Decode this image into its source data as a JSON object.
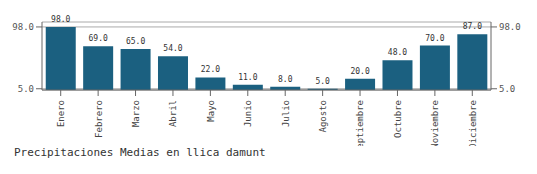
{
  "chart_data": {
    "type": "bar",
    "title": "Precipitaciones Medias en llica damunt",
    "categories": [
      "Enero",
      "Febrero",
      "Marzo",
      "Abril",
      "Mayo",
      "Junio",
      "Julio",
      "Agosto",
      "Septiembre",
      "Octubre",
      "Noviembre",
      "Diciembre"
    ],
    "values": [
      98.0,
      69.0,
      65.0,
      54.0,
      22.0,
      11.0,
      8.0,
      5.0,
      20.0,
      48.0,
      70.0,
      87.0
    ],
    "value_labels": [
      "98.0",
      "69.0",
      "65.0",
      "54.0",
      "22.0",
      "11.0",
      "8.0",
      "5.0",
      "20.0",
      "48.0",
      "70.0",
      "87.0"
    ],
    "data_labels": true,
    "color": "#1b6080",
    "ylim": [
      3.14,
      105.44
    ],
    "yticks": [
      {
        "value": 5.0,
        "label": "5.0"
      },
      {
        "value": 98.0,
        "label": "98.0"
      }
    ],
    "grid": true
  }
}
